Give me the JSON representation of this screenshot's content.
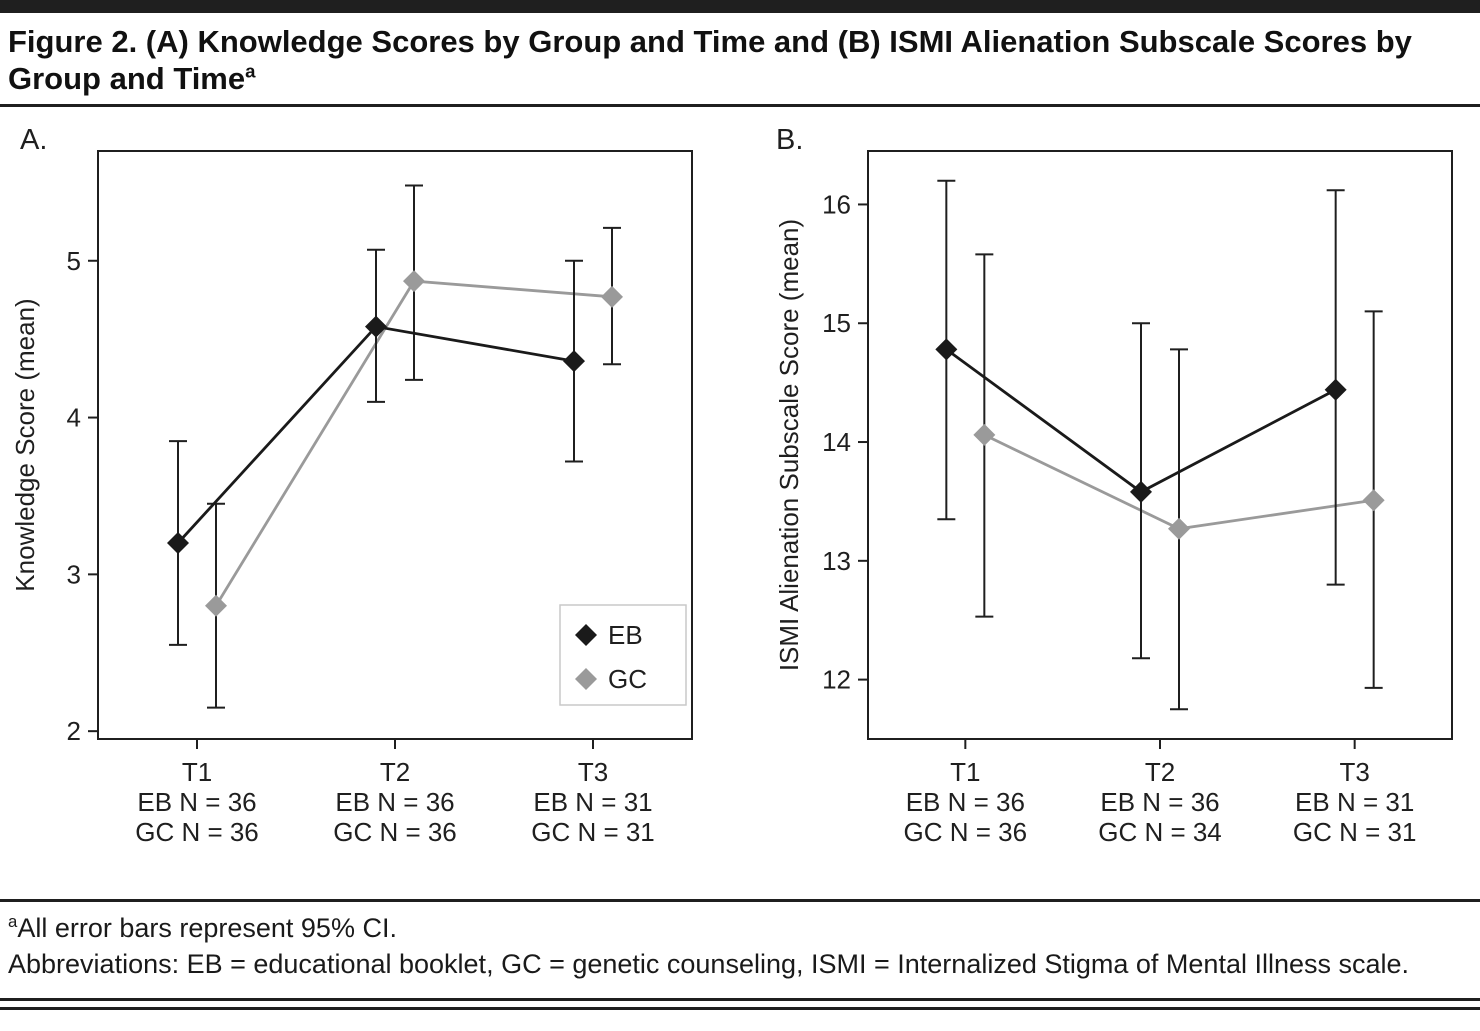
{
  "figure": {
    "title_text": "Figure 2. (A) Knowledge Scores by Group and Time and (B) ISMI Alienation Subscale Scores by Group and Time",
    "title_superscript": "a"
  },
  "colors": {
    "ink": "#1f1f1f",
    "eb": "#1a1a1a",
    "gc": "#9a9a9a",
    "legend_border": "#c9c9c9"
  },
  "chart_data": [
    {
      "type": "line",
      "panel_label": "A.",
      "title": "Knowledge Scores by Group and Time",
      "ylabel": "Knowledge Score (mean)",
      "xlabel": "",
      "ylim": [
        1.95,
        5.7
      ],
      "yticks": [
        2,
        3,
        4,
        5
      ],
      "grid": false,
      "legend": true,
      "legend_position": "bottom-right",
      "error_bars": "95% CI",
      "categories": [
        "T1",
        "T2",
        "T3"
      ],
      "x_sublabels": [
        [
          "EB N = 36",
          "GC N = 36"
        ],
        [
          "EB N = 36",
          "GC N = 36"
        ],
        [
          "EB N = 31",
          "GC N = 31"
        ]
      ],
      "series": [
        {
          "name": "EB",
          "color": "#1a1a1a",
          "marker": "diamond",
          "values": [
            3.2,
            4.58,
            4.36
          ],
          "ci_low": [
            2.55,
            4.1,
            3.72
          ],
          "ci_high": [
            3.85,
            5.07,
            5.0
          ]
        },
        {
          "name": "GC",
          "color": "#9a9a9a",
          "marker": "diamond",
          "values": [
            2.8,
            4.87,
            4.77
          ],
          "ci_low": [
            2.15,
            4.24,
            4.34
          ],
          "ci_high": [
            3.45,
            5.48,
            5.21
          ]
        }
      ]
    },
    {
      "type": "line",
      "panel_label": "B.",
      "title": "ISMI Alienation Subscale Scores by Group and Time",
      "ylabel": "ISMI Alienation Subscale Score (mean)",
      "xlabel": "",
      "ylim": [
        11.5,
        16.45
      ],
      "yticks": [
        12,
        13,
        14,
        15,
        16
      ],
      "grid": false,
      "legend": false,
      "error_bars": "95% CI",
      "categories": [
        "T1",
        "T2",
        "T3"
      ],
      "x_sublabels": [
        [
          "EB N = 36",
          "GC N = 36"
        ],
        [
          "EB N = 36",
          "GC N = 34"
        ],
        [
          "EB N = 31",
          "GC N = 31"
        ]
      ],
      "series": [
        {
          "name": "EB",
          "color": "#1a1a1a",
          "marker": "diamond",
          "values": [
            14.78,
            13.58,
            14.44
          ],
          "ci_low": [
            13.35,
            12.18,
            12.8
          ],
          "ci_high": [
            16.2,
            15.0,
            16.12
          ]
        },
        {
          "name": "GC",
          "color": "#9a9a9a",
          "marker": "diamond",
          "values": [
            14.06,
            13.27,
            13.51
          ],
          "ci_low": [
            12.53,
            11.75,
            11.93
          ],
          "ci_high": [
            15.58,
            14.78,
            15.1
          ]
        }
      ]
    }
  ],
  "footnotes": {
    "note_marker": "a",
    "note_text": "All error bars represent 95% CI.",
    "abbreviations": "Abbreviations: EB = educational booklet, GC = genetic counseling, ISMI = Internalized Stigma of Mental Illness scale."
  }
}
